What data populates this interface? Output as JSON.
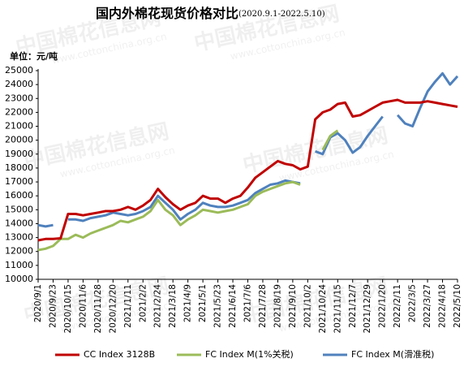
{
  "chart_data": {
    "type": "line",
    "title": "国内外棉花现货价格对比",
    "subtitle": "(2020.9.1-2022.5.10)",
    "y_label": "单位：元/吨",
    "watermark": [
      "中国棉花信息网",
      "www.cottonchina.org.cn"
    ],
    "categories": [
      "2020/9/1",
      null,
      "2020/9/23",
      null,
      "2020/10/15",
      null,
      "2020/11/6",
      null,
      "2020/11/28",
      null,
      "2020/12/20",
      null,
      "2021/1/11",
      null,
      "2021/2/2",
      null,
      "2021/2/24",
      null,
      "2021/3/18",
      null,
      "2021/4/9",
      null,
      "2021/5/1",
      null,
      "2021/5/23",
      null,
      "2021/6/14",
      null,
      "2021/7/6",
      null,
      "2021/7/28",
      null,
      "2021/8/19",
      null,
      "2021/9/10",
      null,
      "2021/10/2",
      null,
      "2021/10/24",
      null,
      "2021/11/15",
      null,
      "2021/12/7",
      null,
      "2021/12/29",
      null,
      "2022/1/20",
      null,
      "2022/2/11",
      null,
      "2022/3/5",
      null,
      "2022/3/27",
      null,
      "2022/4/18",
      null,
      "2022/5/10"
    ],
    "series": [
      {
        "name": "CC Index 3128B",
        "color": "#c00000",
        "values": [
          12800,
          12900,
          12900,
          12950,
          14700,
          14700,
          14600,
          14700,
          14800,
          14900,
          14900,
          15000,
          15200,
          15000,
          15300,
          15700,
          16500,
          15900,
          15400,
          15000,
          15300,
          15500,
          16000,
          15800,
          15800,
          15500,
          15800,
          16000,
          16600,
          17300,
          17700,
          18100,
          18500,
          18300,
          18200,
          17900,
          18100,
          21500,
          22000,
          22200,
          22600,
          22700,
          21700,
          21800,
          22100,
          22400,
          22700,
          22800,
          22900,
          22700,
          22700,
          22700,
          22800,
          22700,
          22600,
          22500,
          22400
        ]
      },
      {
        "name": "FC Index M(1%关税)",
        "color": "#9bbb59",
        "values": [
          12100,
          12200,
          12400,
          12900,
          12900,
          13200,
          13000,
          13300,
          13500,
          13700,
          13900,
          14200,
          14100,
          14300,
          14500,
          14900,
          15700,
          15000,
          14600,
          13900,
          14300,
          14600,
          15000,
          14900,
          14800,
          14900,
          15000,
          15200,
          15400,
          16000,
          16300,
          16500,
          16700,
          16900,
          17000,
          16800,
          null,
          null,
          19300,
          20300,
          20700,
          null,
          null,
          null,
          null,
          null,
          null,
          null,
          null,
          null,
          null,
          null,
          null,
          null,
          null,
          null,
          null
        ]
      },
      {
        "name": "FC Index M(滑准税)",
        "color": "#4f81bd",
        "values": [
          13900,
          13800,
          13900,
          null,
          14300,
          14300,
          14200,
          14400,
          14500,
          14600,
          14800,
          14700,
          14600,
          14700,
          14900,
          15200,
          16000,
          15500,
          15000,
          14300,
          14700,
          15000,
          15500,
          15300,
          15200,
          15200,
          15300,
          15500,
          15700,
          16200,
          16500,
          16800,
          16900,
          17100,
          17000,
          16900,
          null,
          19200,
          19000,
          20200,
          20500,
          20000,
          19100,
          19500,
          20300,
          21000,
          21700,
          null,
          21800,
          21200,
          21000,
          22300,
          23500,
          24200,
          24800,
          24000,
          24600
        ]
      }
    ],
    "ylim": [
      10000,
      25000
    ],
    "yticks": [
      10000,
      11000,
      12000,
      13000,
      14000,
      15000,
      16000,
      17000,
      18000,
      19000,
      20000,
      21000,
      22000,
      23000,
      24000,
      25000
    ],
    "grid": false,
    "legend": "bottom"
  }
}
